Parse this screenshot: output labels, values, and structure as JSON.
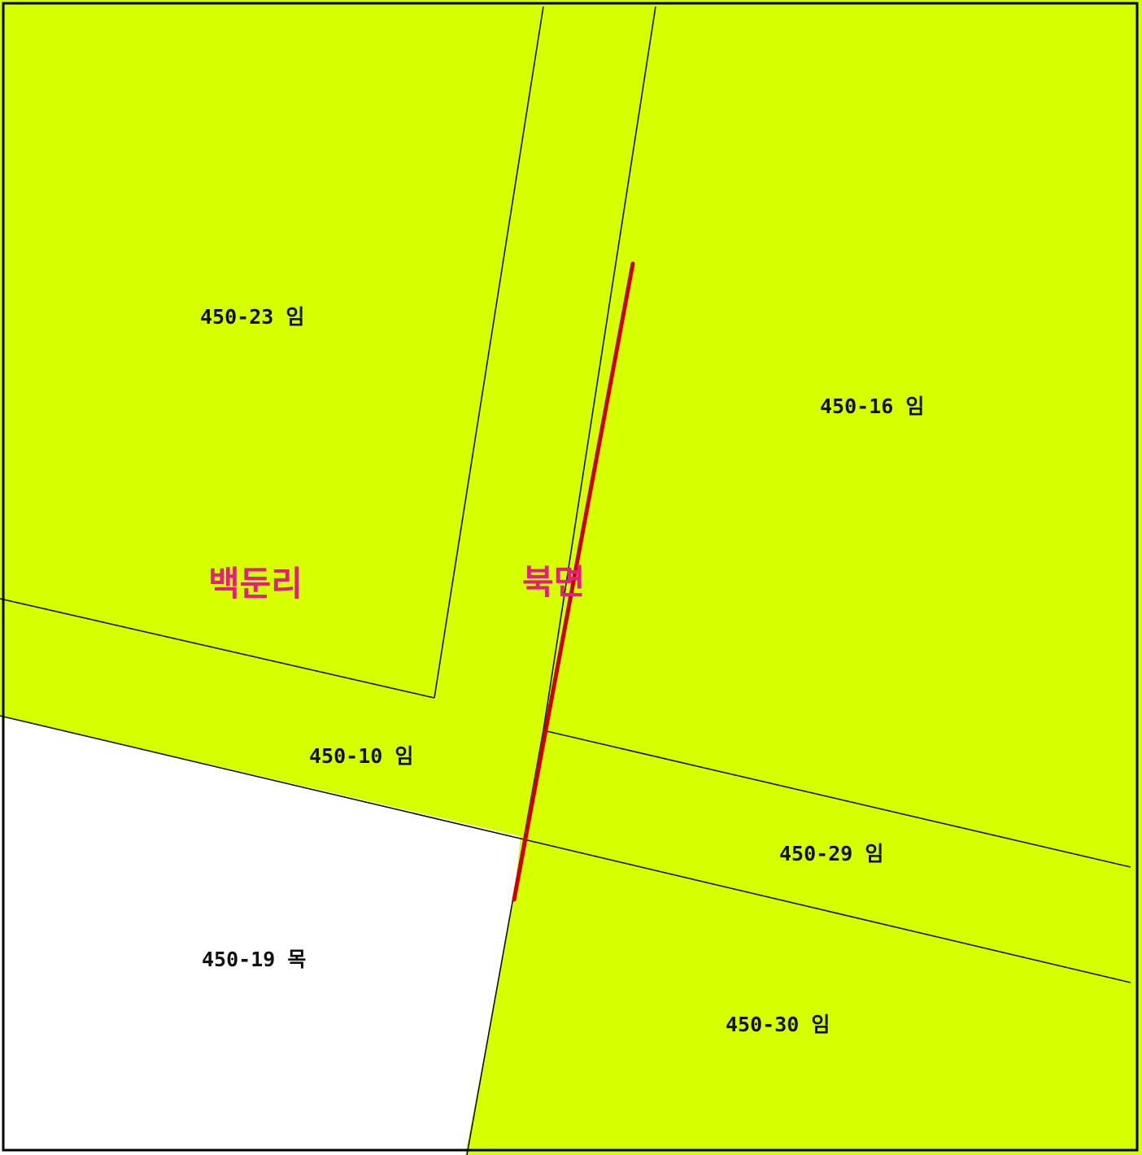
{
  "map": {
    "colors": {
      "parcel_fill": "#d6ff00",
      "unshaded_fill": "#ffffff",
      "boundary_line": "#111111",
      "frame_border": "#000000",
      "highlight_line": "#cc0000",
      "district_text": "#e0207a"
    },
    "parcels": [
      {
        "id": "450-23",
        "label": "450-23 임"
      },
      {
        "id": "450-16",
        "label": "450-16 임"
      },
      {
        "id": "450-10",
        "label": "450-10 임"
      },
      {
        "id": "450-29",
        "label": "450-29 임"
      },
      {
        "id": "450-19",
        "label": "450-19 목"
      },
      {
        "id": "450-30",
        "label": "450-30 임"
      }
    ],
    "districts": [
      {
        "id": "baekdun-ri",
        "label": "백둔리"
      },
      {
        "id": "buk-myeon",
        "label": "북면"
      }
    ]
  }
}
